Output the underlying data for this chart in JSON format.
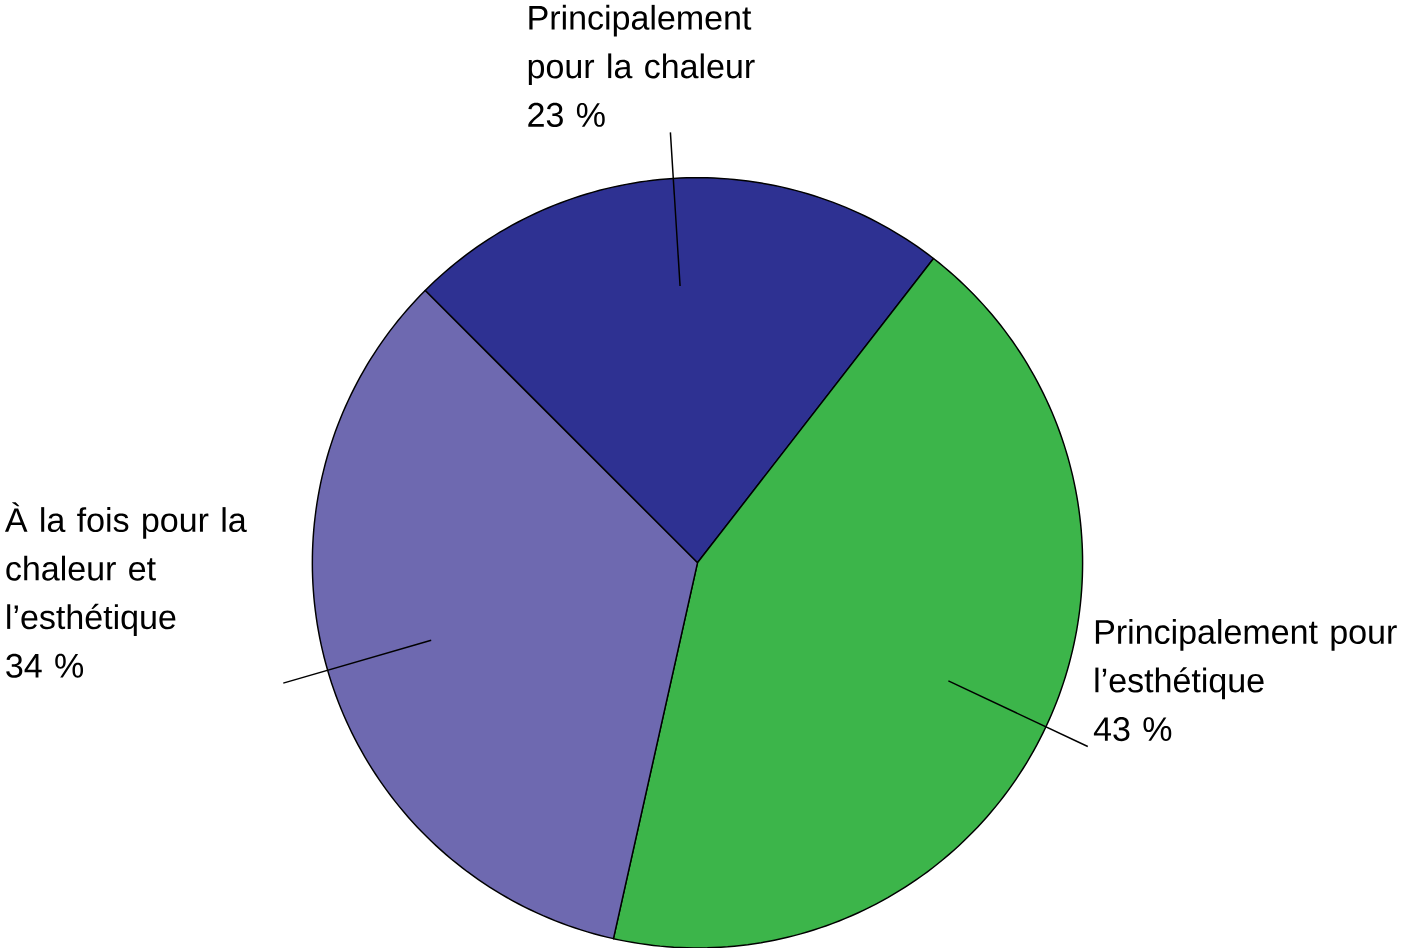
{
  "chart_data": {
    "type": "pie",
    "categories": [
      "Principalement pour la chaleur",
      "Principalement pour l’esthétique",
      "À la fois pour la chaleur et l’esthétique"
    ],
    "values": [
      23,
      43,
      34
    ],
    "value_labels": [
      "23 %",
      "43 %",
      "34 %"
    ],
    "colors": [
      "#2e3192",
      "#3cb54a",
      "#6e69b0"
    ]
  }
}
